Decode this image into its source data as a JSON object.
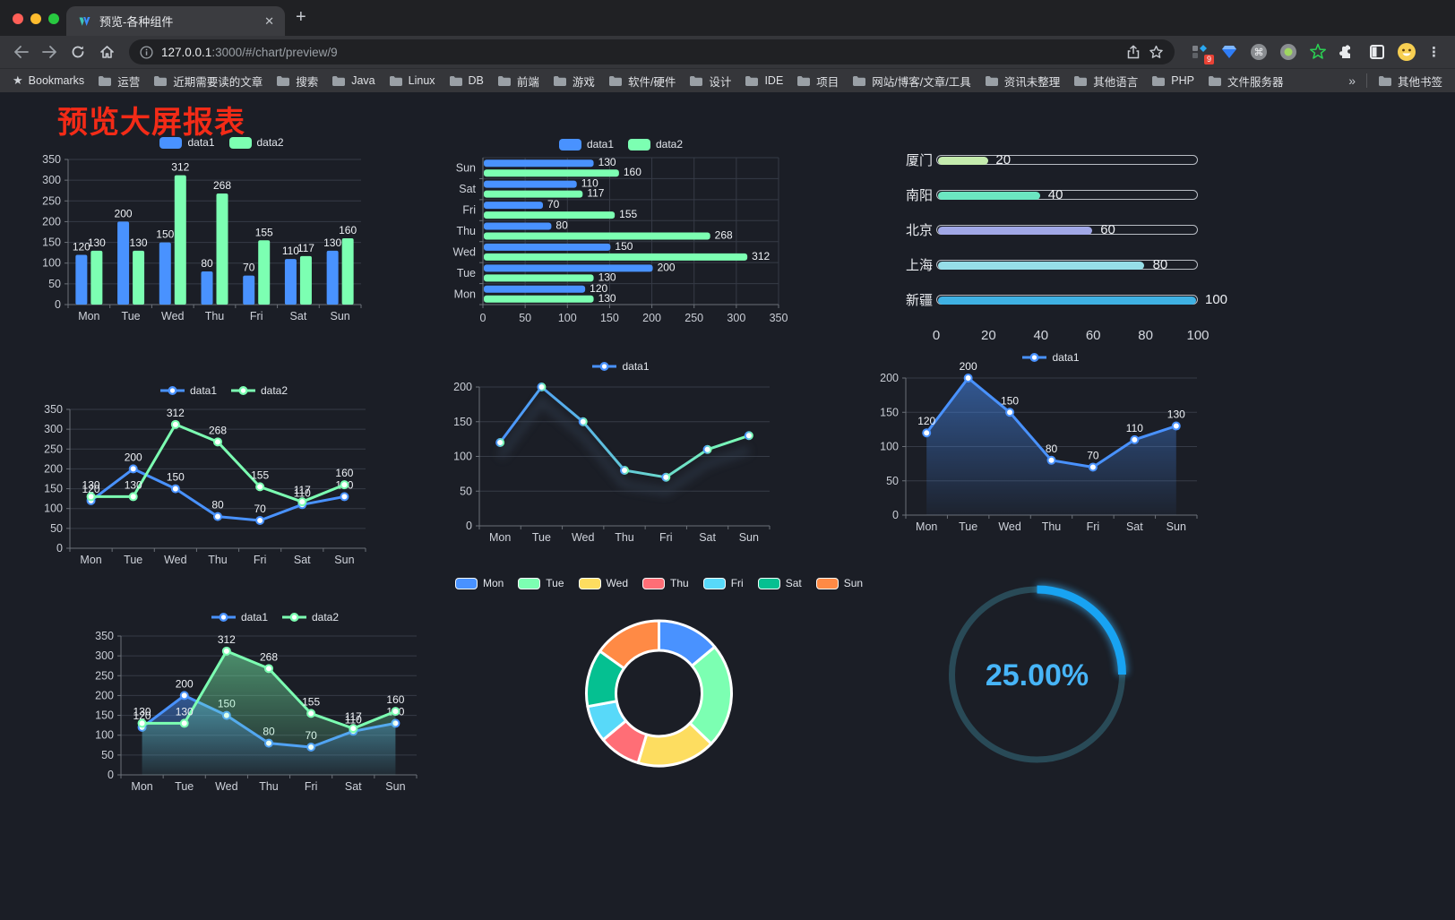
{
  "browser": {
    "tab_title": "预览-各种组件",
    "tab_close": "✕",
    "new_tab": "+",
    "url_host": "127.0.0.1",
    "url_rest": ":3000/#/chart/preview/9",
    "extension_badge": "9",
    "bookmarks_label": "Bookmarks",
    "bookmark_folders": [
      "运营",
      "近期需要读的文章",
      "搜索",
      "Java",
      "Linux",
      "DB",
      "前端",
      "游戏",
      "软件/硬件",
      "设计",
      "IDE",
      "项目",
      "网站/博客/文章/工具",
      "资讯未整理",
      "其他语言",
      "PHP",
      "文件服务器"
    ],
    "bookmarks_overflow": "»",
    "other_bookmarks": "其他书签"
  },
  "page": {
    "title": "预览大屏报表"
  },
  "chart_data": [
    {
      "id": "bar-grouped",
      "type": "bar",
      "categories": [
        "Mon",
        "Tue",
        "Wed",
        "Thu",
        "Fri",
        "Sat",
        "Sun"
      ],
      "series": [
        {
          "name": "data1",
          "color": "#4992ff",
          "values": [
            120,
            200,
            150,
            80,
            70,
            110,
            130
          ]
        },
        {
          "name": "data2",
          "color": "#7cffb2",
          "values": [
            130,
            130,
            312,
            268,
            155,
            117,
            160
          ]
        }
      ],
      "ylim": [
        0,
        350
      ],
      "ytick": 50,
      "value_labels": true,
      "grid": true,
      "legend_position": "top"
    },
    {
      "id": "bar-horizontal",
      "type": "bar-horizontal",
      "categories": [
        "Mon",
        "Tue",
        "Wed",
        "Thu",
        "Fri",
        "Sat",
        "Sun"
      ],
      "series": [
        {
          "name": "data1",
          "color": "#4992ff",
          "values": [
            120,
            200,
            150,
            80,
            70,
            110,
            130
          ]
        },
        {
          "name": "data2",
          "color": "#7cffb2",
          "values": [
            130,
            130,
            312,
            268,
            155,
            117,
            160
          ]
        }
      ],
      "xlim": [
        0,
        350
      ],
      "xtick": 50,
      "value_labels": true,
      "grid": true,
      "legend_position": "top"
    },
    {
      "id": "progress-bars",
      "type": "progress",
      "items": [
        {
          "label": "厦门",
          "value": 20,
          "color": "#c4ebad"
        },
        {
          "label": "南阳",
          "value": 40,
          "color": "#6be6c1"
        },
        {
          "label": "北京",
          "value": 60,
          "color": "#a0a7e6"
        },
        {
          "label": "上海",
          "value": 80,
          "color": "#96dee8"
        },
        {
          "label": "新疆",
          "value": 100,
          "color": "#3fb1e3"
        }
      ],
      "axis_ticks": [
        0,
        20,
        40,
        60,
        80,
        100
      ],
      "max": 100
    },
    {
      "id": "line-two",
      "type": "line",
      "categories": [
        "Mon",
        "Tue",
        "Wed",
        "Thu",
        "Fri",
        "Sat",
        "Sun"
      ],
      "series": [
        {
          "name": "data1",
          "color": "#4992ff",
          "values": [
            120,
            200,
            150,
            80,
            70,
            110,
            130
          ]
        },
        {
          "name": "data2",
          "color": "#7cffb2",
          "values": [
            130,
            130,
            312,
            268,
            155,
            117,
            160
          ]
        }
      ],
      "ylim": [
        0,
        350
      ],
      "ytick": 50,
      "value_labels": true,
      "grid": true,
      "legend_position": "top"
    },
    {
      "id": "line-gradient",
      "type": "line",
      "categories": [
        "Mon",
        "Tue",
        "Wed",
        "Thu",
        "Fri",
        "Sat",
        "Sun"
      ],
      "series": [
        {
          "name": "data1",
          "gradient": [
            "#4992ff",
            "#7cffb2"
          ],
          "color": "#4992ff",
          "values": [
            120,
            200,
            150,
            80,
            70,
            110,
            130
          ]
        }
      ],
      "ylim": [
        0,
        200
      ],
      "ytick": 50,
      "value_labels": false,
      "shadow": true,
      "grid": true,
      "legend_position": "top"
    },
    {
      "id": "area-one",
      "type": "line",
      "categories": [
        "Mon",
        "Tue",
        "Wed",
        "Thu",
        "Fri",
        "Sat",
        "Sun"
      ],
      "series": [
        {
          "name": "data1",
          "color": "#4992ff",
          "area": true,
          "values": [
            120,
            200,
            150,
            80,
            70,
            110,
            130
          ]
        }
      ],
      "ylim": [
        0,
        200
      ],
      "ytick": 50,
      "value_labels": true,
      "grid": true,
      "legend_position": "top"
    },
    {
      "id": "area-two",
      "type": "line",
      "categories": [
        "Mon",
        "Tue",
        "Wed",
        "Thu",
        "Fri",
        "Sat",
        "Sun"
      ],
      "series": [
        {
          "name": "data1",
          "color": "#4992ff",
          "area": true,
          "values": [
            120,
            200,
            150,
            80,
            70,
            110,
            130
          ]
        },
        {
          "name": "data2",
          "color": "#7cffb2",
          "area": true,
          "values": [
            130,
            130,
            312,
            268,
            155,
            117,
            160
          ]
        }
      ],
      "ylim": [
        0,
        350
      ],
      "ytick": 50,
      "value_labels": true,
      "grid": true,
      "legend_position": "top"
    },
    {
      "id": "donut",
      "type": "pie",
      "categories": [
        "Mon",
        "Tue",
        "Wed",
        "Thu",
        "Fri",
        "Sat",
        "Sun"
      ],
      "values": [
        120,
        200,
        150,
        80,
        70,
        110,
        130
      ],
      "colors": [
        "#4992ff",
        "#7cffb2",
        "#fddd60",
        "#ff6e76",
        "#58d9f9",
        "#05c091",
        "#ff8a45"
      ],
      "legend_position": "top"
    },
    {
      "id": "gauge",
      "type": "gauge",
      "label": "25.00%",
      "percent": 25,
      "arc_color": "#18a3f2",
      "glow_color": "#39b6ff",
      "track_color": "#294a57",
      "text_color": "#47b5f8"
    }
  ]
}
